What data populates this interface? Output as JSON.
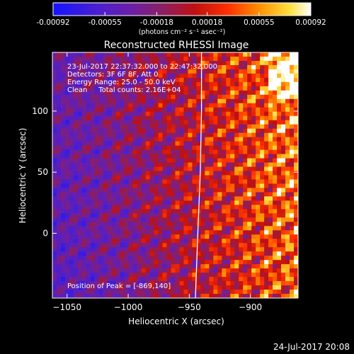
{
  "chart_data": {
    "type": "heatmap",
    "title": "Reconstructed RHESSI Image",
    "xlabel": "Heliocentric X (arcsec)",
    "ylabel": "Heliocentric Y (arcsec)",
    "xlim": [
      -1062,
      -861
    ],
    "ylim": [
      -53,
      148
    ],
    "x_ticks": [
      -1050,
      -1000,
      -950,
      -900
    ],
    "x_tick_labels": [
      "−1050",
      "−1000",
      "−950",
      "−900"
    ],
    "y_ticks": [
      0,
      50,
      100
    ],
    "y_tick_labels": [
      "0",
      "50",
      "100"
    ],
    "colorbar": {
      "min": -0.00092,
      "max": 0.00092,
      "ticks": [
        -0.00092,
        -0.00055,
        -0.00018,
        0.00018,
        0.00055,
        0.00092
      ],
      "tick_labels": [
        "-0.00092",
        "-0.00055",
        "-0.00018",
        "0.00018",
        "0.00055",
        "0.00092"
      ],
      "unit_label": "(photons cm⁻² s⁻¹ asec⁻²)",
      "colormap": "blue-purple-red-yellow-white"
    },
    "annotations": {
      "time_range": "23-Jul-2017 22:37:32.000 to 22:47:32.000",
      "detectors": "Detectors: 3F 6F 8F, Att 0",
      "energy_range": "Energy Range: 25.0 - 50.0 keV",
      "clean_counts": "Clean     Total counts: 2.16E+04",
      "peak": "Position of Peak = [-869,140]"
    },
    "peak_position": [
      -869,
      140
    ],
    "limb_curve_x": [
      -945,
      -943,
      -941,
      -940,
      -940
    ],
    "limb_curve_y": [
      -53,
      0,
      50,
      100,
      148
    ],
    "grid": false
  },
  "footer": {
    "timestamp": "24-Jul-2017 20:08"
  },
  "colors": {
    "background": "#000000",
    "foreground": "#ffffff",
    "limb_line": "#ffffff"
  }
}
